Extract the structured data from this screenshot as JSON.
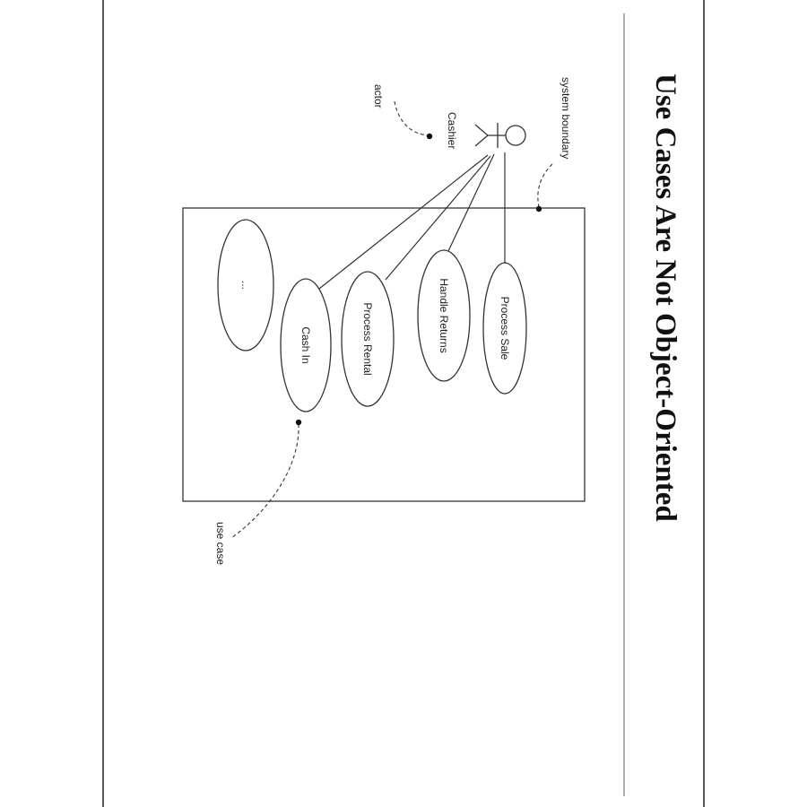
{
  "slide": {
    "title": "Use Cases Are Not Object-Oriented"
  },
  "diagram": {
    "actor": {
      "name": "Cashier"
    },
    "use_cases": [
      {
        "id": "process-sale",
        "label": "Process Sale"
      },
      {
        "id": "handle-returns",
        "label": "Handle Returns"
      },
      {
        "id": "process-rental",
        "label": "Process Rental"
      },
      {
        "id": "cash-in",
        "label": "Cash In"
      },
      {
        "id": "more",
        "label": "..."
      }
    ],
    "annotations": {
      "actor": "actor",
      "system_boundary": "system boundary",
      "use_case": "use case"
    }
  },
  "colors": {
    "line": "#333333",
    "frame": "#5a5a5a",
    "background": "#ffffff"
  }
}
